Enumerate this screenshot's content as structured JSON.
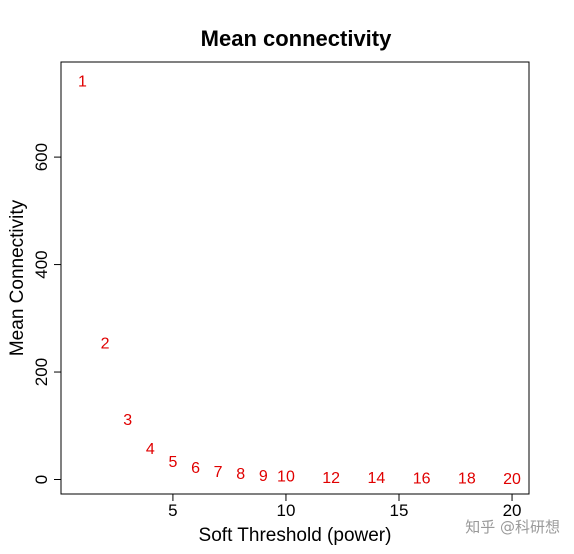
{
  "chart_data": {
    "type": "scatter",
    "title": "Mean connectivity",
    "xlabel": "Soft Threshold (power)",
    "ylabel": "Mean Connectivity",
    "xlim": [
      0.05,
      20.75
    ],
    "ylim": [
      -27,
      777
    ],
    "x_ticks": [
      5,
      10,
      15,
      20
    ],
    "y_ticks": [
      0,
      200,
      400,
      600
    ],
    "grid": false,
    "point_color": "#e00000",
    "points": [
      {
        "x": 1,
        "y": 740,
        "label": "1"
      },
      {
        "x": 2,
        "y": 252,
        "label": "2"
      },
      {
        "x": 3,
        "y": 110,
        "label": "3"
      },
      {
        "x": 4,
        "y": 56,
        "label": "4"
      },
      {
        "x": 5,
        "y": 32,
        "label": "5"
      },
      {
        "x": 6,
        "y": 20,
        "label": "6"
      },
      {
        "x": 7,
        "y": 13,
        "label": "7"
      },
      {
        "x": 8,
        "y": 9,
        "label": "8"
      },
      {
        "x": 9,
        "y": 6,
        "label": "9"
      },
      {
        "x": 10,
        "y": 5,
        "label": "10"
      },
      {
        "x": 12,
        "y": 2,
        "label": "12"
      },
      {
        "x": 14,
        "y": 2,
        "label": "14"
      },
      {
        "x": 16,
        "y": 1,
        "label": "16"
      },
      {
        "x": 18,
        "y": 1,
        "label": "18"
      },
      {
        "x": 20,
        "y": 0,
        "label": "20"
      }
    ]
  },
  "watermark": "知乎 @科研想",
  "watermark_color": "#9a9a9a"
}
